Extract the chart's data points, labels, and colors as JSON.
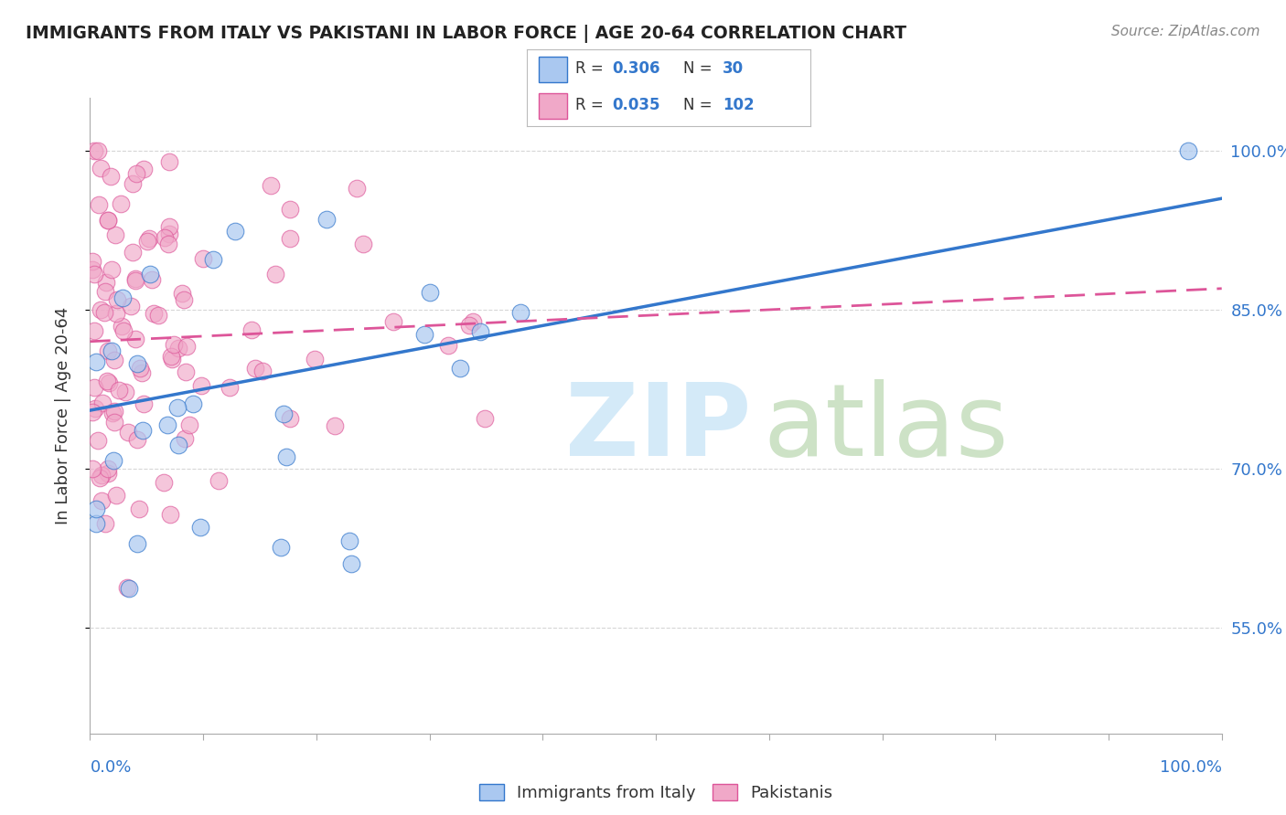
{
  "title": "IMMIGRANTS FROM ITALY VS PAKISTANI IN LABOR FORCE | AGE 20-64 CORRELATION CHART",
  "source": "Source: ZipAtlas.com",
  "ylabel": "In Labor Force | Age 20-64",
  "xlim": [
    0.0,
    1.0
  ],
  "ylim": [
    0.45,
    1.05
  ],
  "ytick_vals": [
    0.55,
    0.7,
    0.85,
    1.0
  ],
  "ytick_labels": [
    "55.0%",
    "70.0%",
    "85.0%",
    "100.0%"
  ],
  "xtick_labels_left": "0.0%",
  "xtick_labels_right": "100.0%",
  "legend_label1": "Immigrants from Italy",
  "legend_label2": "Pakistanis",
  "R_italy": 0.306,
  "N_italy": 30,
  "R_pak": 0.035,
  "N_pak": 102,
  "color_italy": "#aac8f0",
  "color_pak": "#f0a8c8",
  "line_color_italy": "#3377cc",
  "line_color_pak": "#dd5599",
  "background_color": "#ffffff",
  "grid_color": "#cccccc",
  "title_color": "#222222",
  "italy_line_y0": 0.755,
  "italy_line_y1": 0.955,
  "pak_line_y0": 0.82,
  "pak_line_y1": 0.87,
  "watermark_zip_color": "#d0e8f8",
  "watermark_atlas_color": "#c8dfc0"
}
